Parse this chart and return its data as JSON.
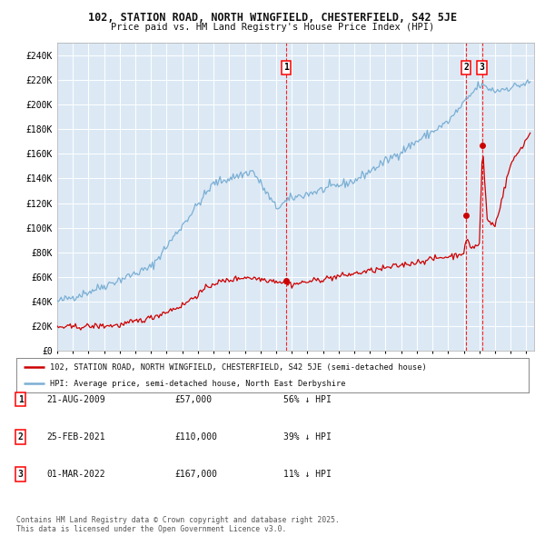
{
  "title1": "102, STATION ROAD, NORTH WINGFIELD, CHESTERFIELD, S42 5JE",
  "title2": "Price paid vs. HM Land Registry's House Price Index (HPI)",
  "background_color": "#ffffff",
  "plot_bg_color": "#dce9f5",
  "grid_color": "#ffffff",
  "hpi_color": "#7bafd4",
  "price_color": "#cc0000",
  "ylim": [
    0,
    250000
  ],
  "yticks": [
    0,
    20000,
    40000,
    60000,
    80000,
    100000,
    120000,
    140000,
    160000,
    180000,
    200000,
    220000,
    240000
  ],
  "ytick_labels": [
    "£0",
    "£20K",
    "£40K",
    "£60K",
    "£80K",
    "£100K",
    "£120K",
    "£140K",
    "£160K",
    "£180K",
    "£200K",
    "£220K",
    "£240K"
  ],
  "xlim": [
    1995,
    2025.5
  ],
  "sale_dates": [
    2009.64,
    2021.15,
    2022.17
  ],
  "sale_prices": [
    57000,
    110000,
    167000
  ],
  "sale_labels": [
    "1",
    "2",
    "3"
  ],
  "legend_entries": [
    "102, STATION ROAD, NORTH WINGFIELD, CHESTERFIELD, S42 5JE (semi-detached house)",
    "HPI: Average price, semi-detached house, North East Derbyshire"
  ],
  "table_rows": [
    {
      "num": "1",
      "date": "21-AUG-2009",
      "price": "£57,000",
      "hpi": "56% ↓ HPI"
    },
    {
      "num": "2",
      "date": "25-FEB-2021",
      "price": "£110,000",
      "hpi": "39% ↓ HPI"
    },
    {
      "num": "3",
      "date": "01-MAR-2022",
      "price": "£167,000",
      "hpi": "11% ↓ HPI"
    }
  ],
  "footer": "Contains HM Land Registry data © Crown copyright and database right 2025.\nThis data is licensed under the Open Government Licence v3.0."
}
